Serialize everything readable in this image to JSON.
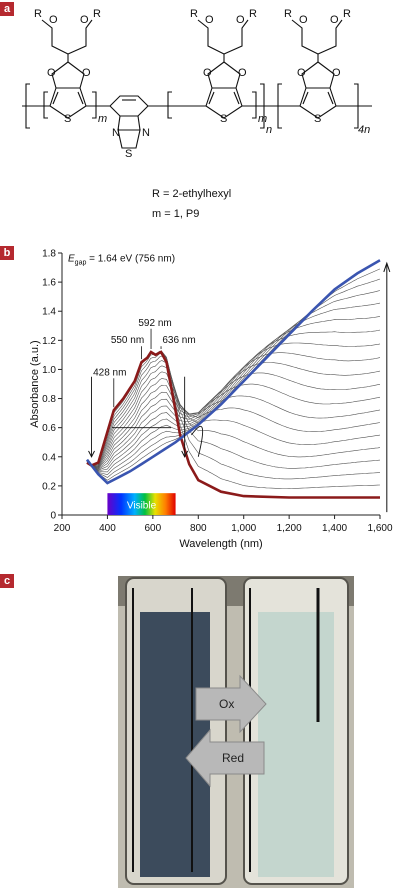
{
  "panels": {
    "a": "a",
    "b": "b",
    "c": "c"
  },
  "chem": {
    "r_label": "R",
    "o_label": "O",
    "s_label": "S",
    "n_label": "N",
    "m_label": "m",
    "n_sub": "n",
    "four_n": "4n",
    "caption_r": "R = 2-ethylhexyl",
    "caption_m": "m = 1, P9"
  },
  "chart_data": {
    "type": "line",
    "title": "",
    "xlabel": "Wavelength (nm)",
    "ylabel": "Absorbance (a.u.)",
    "xlim": [
      200,
      1600
    ],
    "ylim": [
      0,
      1.8
    ],
    "x_ticks": [
      "200",
      "400",
      "600",
      "800",
      "1,000",
      "1,200",
      "1,400",
      "1,600"
    ],
    "x_tick_values": [
      200,
      400,
      600,
      800,
      1000,
      1200,
      1400,
      1600
    ],
    "y_ticks": [
      "0",
      "0.2",
      "0.4",
      "0.6",
      "0.8",
      "1.0",
      "1.2",
      "1.4",
      "1.6",
      "1.8"
    ],
    "y_tick_values": [
      0,
      0.2,
      0.4,
      0.6,
      0.8,
      1.0,
      1.2,
      1.4,
      1.6,
      1.8
    ],
    "egap_prefix": "E",
    "egap_sub": "gap",
    "egap_text": " = 1.64 eV (756 nm)",
    "visible_label": "Visible",
    "visible_range": [
      400,
      700
    ],
    "peak_labels": [
      {
        "text": "428 nm",
        "x": 428
      },
      {
        "text": "550 nm",
        "x": 550
      },
      {
        "text": "592 nm",
        "x": 592
      },
      {
        "text": "636 nm",
        "x": 636
      }
    ],
    "series": [
      {
        "role": "neutral",
        "color": "#8b1a1a",
        "points": [
          [
            310,
            0.36
          ],
          [
            330,
            0.34
          ],
          [
            360,
            0.36
          ],
          [
            390,
            0.52
          ],
          [
            428,
            0.72
          ],
          [
            470,
            0.8
          ],
          [
            520,
            0.92
          ],
          [
            550,
            1.05
          ],
          [
            575,
            1.08
          ],
          [
            592,
            1.12
          ],
          [
            612,
            1.1
          ],
          [
            636,
            1.12
          ],
          [
            660,
            1.05
          ],
          [
            690,
            0.8
          ],
          [
            720,
            0.55
          ],
          [
            760,
            0.35
          ],
          [
            800,
            0.24
          ],
          [
            900,
            0.16
          ],
          [
            1000,
            0.13
          ],
          [
            1200,
            0.12
          ],
          [
            1400,
            0.12
          ],
          [
            1600,
            0.12
          ]
        ]
      },
      {
        "role": "oxidized",
        "color": "#3a55b0",
        "points": [
          [
            310,
            0.38
          ],
          [
            330,
            0.34
          ],
          [
            360,
            0.28
          ],
          [
            400,
            0.22
          ],
          [
            450,
            0.26
          ],
          [
            500,
            0.3
          ],
          [
            550,
            0.35
          ],
          [
            600,
            0.4
          ],
          [
            650,
            0.45
          ],
          [
            700,
            0.5
          ],
          [
            750,
            0.56
          ],
          [
            800,
            0.62
          ],
          [
            900,
            0.76
          ],
          [
            1000,
            0.92
          ],
          [
            1100,
            1.08
          ],
          [
            1200,
            1.24
          ],
          [
            1300,
            1.4
          ],
          [
            1400,
            1.55
          ],
          [
            1500,
            1.66
          ],
          [
            1600,
            1.75
          ]
        ]
      }
    ],
    "intermediate_count": 18,
    "intermediate_color": "#555555"
  },
  "photo": {
    "ox_label": "Ox",
    "red_label": "Red",
    "left_vial_color": "#3c4b5c",
    "right_vial_color": "#c4d6ce"
  }
}
